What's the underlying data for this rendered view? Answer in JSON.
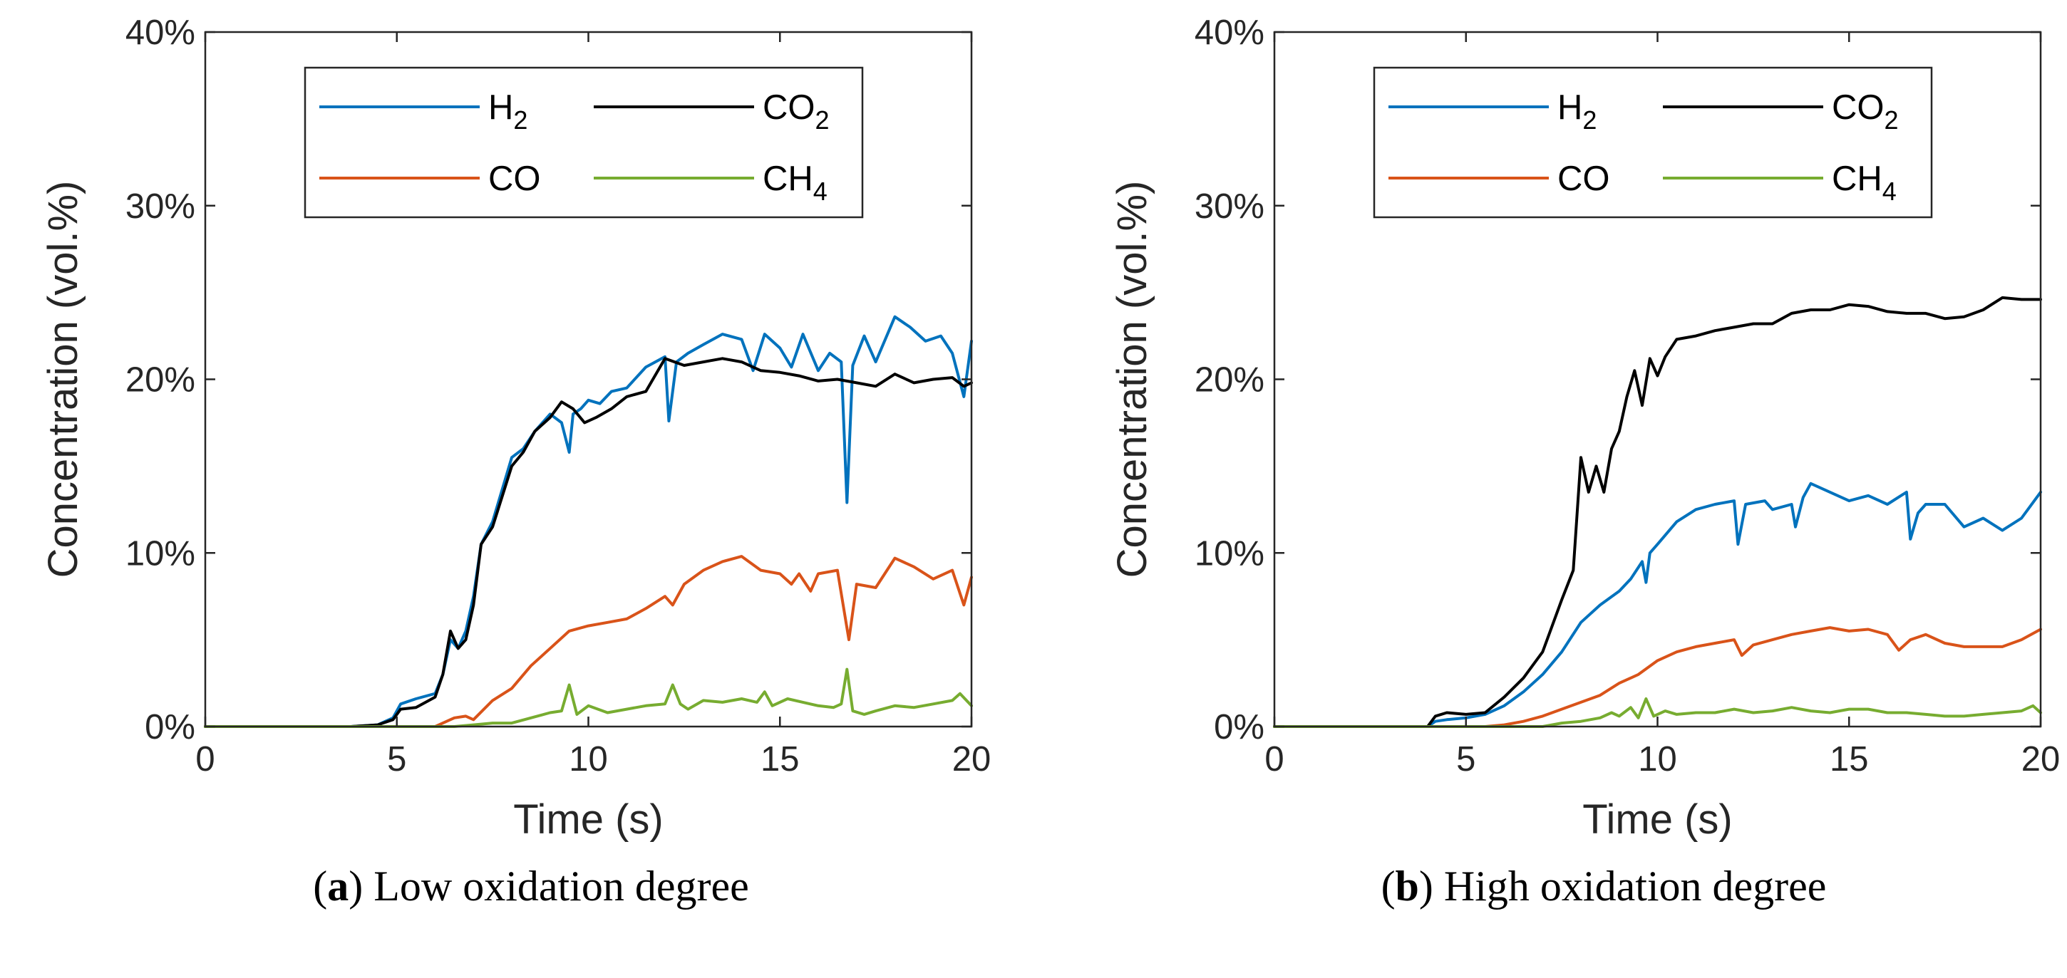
{
  "chart_data": [
    {
      "type": "line",
      "panel_label": "a",
      "caption": "Low oxidation degree",
      "xlabel": "Time (s)",
      "ylabel": "Concentration (vol.%)",
      "xlim": [
        0,
        20
      ],
      "ylim": [
        0,
        40
      ],
      "xticks": [
        0,
        5,
        10,
        15,
        20
      ],
      "yticks": [
        0,
        10,
        20,
        30,
        40
      ],
      "ytick_labels": [
        "0%",
        "10%",
        "20%",
        "30%",
        "40%"
      ],
      "legend_position": "top-center",
      "series": [
        {
          "name": "H2",
          "color": "#0072BD",
          "x": [
            0,
            3.8,
            4.5,
            4.9,
            5.1,
            5.5,
            6.0,
            6.2,
            6.4,
            6.6,
            6.8,
            7.0,
            7.2,
            7.5,
            8.0,
            8.3,
            8.6,
            9.0,
            9.3,
            9.5,
            9.6,
            9.8,
            10.0,
            10.3,
            10.6,
            11.0,
            11.5,
            12.0,
            12.1,
            12.3,
            12.6,
            13.0,
            13.5,
            14.0,
            14.3,
            14.6,
            15.0,
            15.3,
            15.6,
            16.0,
            16.3,
            16.6,
            16.75,
            16.9,
            17.2,
            17.5,
            18.0,
            18.4,
            18.8,
            19.2,
            19.5,
            19.8,
            20.0
          ],
          "y": [
            0,
            0,
            0.1,
            0.5,
            1.3,
            1.6,
            1.9,
            3.0,
            5.0,
            4.5,
            5.5,
            7.5,
            10.5,
            11.8,
            15.5,
            16.0,
            17.0,
            18.0,
            17.5,
            15.8,
            18.0,
            18.3,
            18.8,
            18.6,
            19.3,
            19.5,
            20.7,
            21.3,
            17.6,
            21.0,
            21.5,
            22.0,
            22.6,
            22.3,
            20.5,
            22.6,
            21.8,
            20.7,
            22.6,
            20.5,
            21.5,
            21.0,
            12.9,
            20.8,
            22.5,
            21.0,
            23.6,
            23.0,
            22.2,
            22.5,
            21.5,
            19.0,
            22.2
          ]
        },
        {
          "name": "CO",
          "color": "#D95319",
          "x": [
            0,
            6.0,
            6.3,
            6.5,
            6.8,
            7.0,
            7.5,
            8.0,
            8.5,
            9.0,
            9.5,
            10.0,
            10.5,
            11.0,
            11.5,
            12.0,
            12.2,
            12.5,
            13.0,
            13.5,
            14.0,
            14.5,
            15.0,
            15.3,
            15.5,
            15.8,
            16.0,
            16.5,
            16.8,
            17.0,
            17.5,
            18.0,
            18.5,
            19.0,
            19.5,
            19.8,
            20.0
          ],
          "y": [
            0,
            0,
            0.3,
            0.5,
            0.6,
            0.4,
            1.5,
            2.2,
            3.5,
            4.5,
            5.5,
            5.8,
            6.0,
            6.2,
            6.8,
            7.5,
            7.0,
            8.2,
            9.0,
            9.5,
            9.8,
            9.0,
            8.8,
            8.2,
            8.8,
            7.8,
            8.8,
            9.0,
            5.0,
            8.2,
            8.0,
            9.7,
            9.2,
            8.5,
            9.0,
            7.0,
            8.6
          ]
        },
        {
          "name": "CO2",
          "color": "#000000",
          "x": [
            0,
            3.8,
            4.5,
            4.9,
            5.1,
            5.5,
            6.0,
            6.2,
            6.4,
            6.6,
            6.8,
            7.0,
            7.2,
            7.5,
            8.0,
            8.3,
            8.6,
            9.0,
            9.3,
            9.6,
            9.9,
            10.2,
            10.6,
            11.0,
            11.5,
            12.0,
            12.5,
            13.0,
            13.5,
            14.0,
            14.5,
            15.0,
            15.5,
            16.0,
            16.5,
            17.0,
            17.5,
            18.0,
            18.5,
            19.0,
            19.5,
            19.8,
            20.0
          ],
          "y": [
            0,
            0,
            0.1,
            0.4,
            1.0,
            1.1,
            1.7,
            3.0,
            5.5,
            4.5,
            5.0,
            7.0,
            10.5,
            11.5,
            15.0,
            15.8,
            17.0,
            17.8,
            18.7,
            18.3,
            17.5,
            17.8,
            18.3,
            19.0,
            19.3,
            21.2,
            20.8,
            21.0,
            21.2,
            21.0,
            20.5,
            20.4,
            20.2,
            19.9,
            20.0,
            19.8,
            19.6,
            20.3,
            19.8,
            20.0,
            20.1,
            19.6,
            19.8
          ]
        },
        {
          "name": "CH4",
          "color": "#77AC30",
          "x": [
            0,
            6.5,
            7.0,
            7.5,
            8.0,
            8.5,
            9.0,
            9.3,
            9.5,
            9.7,
            10.0,
            10.5,
            11.0,
            11.5,
            12.0,
            12.2,
            12.4,
            12.6,
            13.0,
            13.5,
            14.0,
            14.4,
            14.6,
            14.8,
            15.2,
            15.6,
            16.0,
            16.4,
            16.6,
            16.75,
            16.9,
            17.2,
            17.5,
            18.0,
            18.5,
            19.0,
            19.5,
            19.7,
            20.0
          ],
          "y": [
            0,
            0,
            0.1,
            0.2,
            0.2,
            0.5,
            0.8,
            0.9,
            2.4,
            0.7,
            1.2,
            0.8,
            1.0,
            1.2,
            1.3,
            2.4,
            1.3,
            1.0,
            1.5,
            1.4,
            1.6,
            1.4,
            2.0,
            1.2,
            1.6,
            1.4,
            1.2,
            1.1,
            1.3,
            3.3,
            0.9,
            0.7,
            0.9,
            1.2,
            1.1,
            1.3,
            1.5,
            1.9,
            1.2
          ]
        }
      ]
    },
    {
      "type": "line",
      "panel_label": "b",
      "caption": "High oxidation degree",
      "xlabel": "Time (s)",
      "ylabel": "Concentration (vol.%)",
      "xlim": [
        0,
        20
      ],
      "ylim": [
        0,
        40
      ],
      "xticks": [
        0,
        5,
        10,
        15,
        20
      ],
      "yticks": [
        0,
        10,
        20,
        30,
        40
      ],
      "ytick_labels": [
        "0%",
        "10%",
        "20%",
        "30%",
        "40%"
      ],
      "legend_position": "top-center",
      "series": [
        {
          "name": "H2",
          "color": "#0072BD",
          "x": [
            0,
            4.0,
            4.2,
            4.5,
            5.0,
            5.5,
            6.0,
            6.5,
            7.0,
            7.5,
            8.0,
            8.5,
            9.0,
            9.3,
            9.6,
            9.7,
            9.8,
            10.0,
            10.5,
            11.0,
            11.5,
            12.0,
            12.1,
            12.3,
            12.8,
            13.0,
            13.5,
            13.6,
            13.8,
            14.0,
            14.5,
            15.0,
            15.5,
            16.0,
            16.5,
            16.6,
            16.8,
            17.0,
            17.5,
            18.0,
            18.5,
            19.0,
            19.5,
            20.0
          ],
          "y": [
            0,
            0,
            0.3,
            0.4,
            0.5,
            0.7,
            1.2,
            2.0,
            3.0,
            4.3,
            6.0,
            7.0,
            7.8,
            8.5,
            9.5,
            8.3,
            10.0,
            10.5,
            11.8,
            12.5,
            12.8,
            13.0,
            10.5,
            12.8,
            13.0,
            12.5,
            12.8,
            11.5,
            13.2,
            14.0,
            13.5,
            13.0,
            13.3,
            12.8,
            13.5,
            10.8,
            12.3,
            12.8,
            12.8,
            11.5,
            12.0,
            11.3,
            12.0,
            13.5
          ]
        },
        {
          "name": "CO",
          "color": "#D95319",
          "x": [
            0,
            5.5,
            6.0,
            6.5,
            7.0,
            7.5,
            8.0,
            8.5,
            9.0,
            9.5,
            10.0,
            10.5,
            11.0,
            11.5,
            12.0,
            12.2,
            12.5,
            13.0,
            13.5,
            14.0,
            14.5,
            15.0,
            15.5,
            16.0,
            16.3,
            16.6,
            17.0,
            17.5,
            18.0,
            18.5,
            19.0,
            19.5,
            20.0
          ],
          "y": [
            0,
            0,
            0.1,
            0.3,
            0.6,
            1.0,
            1.4,
            1.8,
            2.5,
            3.0,
            3.8,
            4.3,
            4.6,
            4.8,
            5.0,
            4.1,
            4.7,
            5.0,
            5.3,
            5.5,
            5.7,
            5.5,
            5.6,
            5.3,
            4.4,
            5.0,
            5.3,
            4.8,
            4.6,
            4.6,
            4.6,
            5.0,
            5.6
          ]
        },
        {
          "name": "CO2",
          "color": "#000000",
          "x": [
            0,
            4.0,
            4.2,
            4.5,
            5.0,
            5.5,
            6.0,
            6.5,
            7.0,
            7.5,
            7.8,
            8.0,
            8.2,
            8.4,
            8.6,
            8.8,
            9.0,
            9.2,
            9.4,
            9.6,
            9.8,
            10.0,
            10.2,
            10.5,
            11.0,
            11.5,
            12.0,
            12.5,
            13.0,
            13.5,
            14.0,
            14.5,
            15.0,
            15.5,
            16.0,
            16.5,
            17.0,
            17.5,
            18.0,
            18.5,
            19.0,
            19.5,
            20.0
          ],
          "y": [
            0,
            0,
            0.6,
            0.8,
            0.7,
            0.8,
            1.7,
            2.8,
            4.3,
            7.3,
            9.0,
            15.5,
            13.5,
            15.0,
            13.5,
            16.0,
            17.0,
            19.0,
            20.5,
            18.5,
            21.2,
            20.2,
            21.3,
            22.3,
            22.5,
            22.8,
            23.0,
            23.2,
            23.2,
            23.8,
            24.0,
            24.0,
            24.3,
            24.2,
            23.9,
            23.8,
            23.8,
            23.5,
            23.6,
            24.0,
            24.7,
            24.6,
            24.6
          ]
        },
        {
          "name": "CH4",
          "color": "#77AC30",
          "x": [
            0,
            7.0,
            7.5,
            8.0,
            8.5,
            8.8,
            9.0,
            9.3,
            9.5,
            9.7,
            9.9,
            10.2,
            10.5,
            11.0,
            11.5,
            12.0,
            12.5,
            13.0,
            13.5,
            14.0,
            14.5,
            15.0,
            15.5,
            16.0,
            16.5,
            17.0,
            17.5,
            18.0,
            18.5,
            19.0,
            19.5,
            19.8,
            20.0
          ],
          "y": [
            0,
            0,
            0.2,
            0.3,
            0.5,
            0.8,
            0.6,
            1.1,
            0.5,
            1.6,
            0.6,
            0.9,
            0.7,
            0.8,
            0.8,
            1.0,
            0.8,
            0.9,
            1.1,
            0.9,
            0.8,
            1.0,
            1.0,
            0.8,
            0.8,
            0.7,
            0.6,
            0.6,
            0.7,
            0.8,
            0.9,
            1.2,
            0.8
          ]
        }
      ]
    }
  ]
}
